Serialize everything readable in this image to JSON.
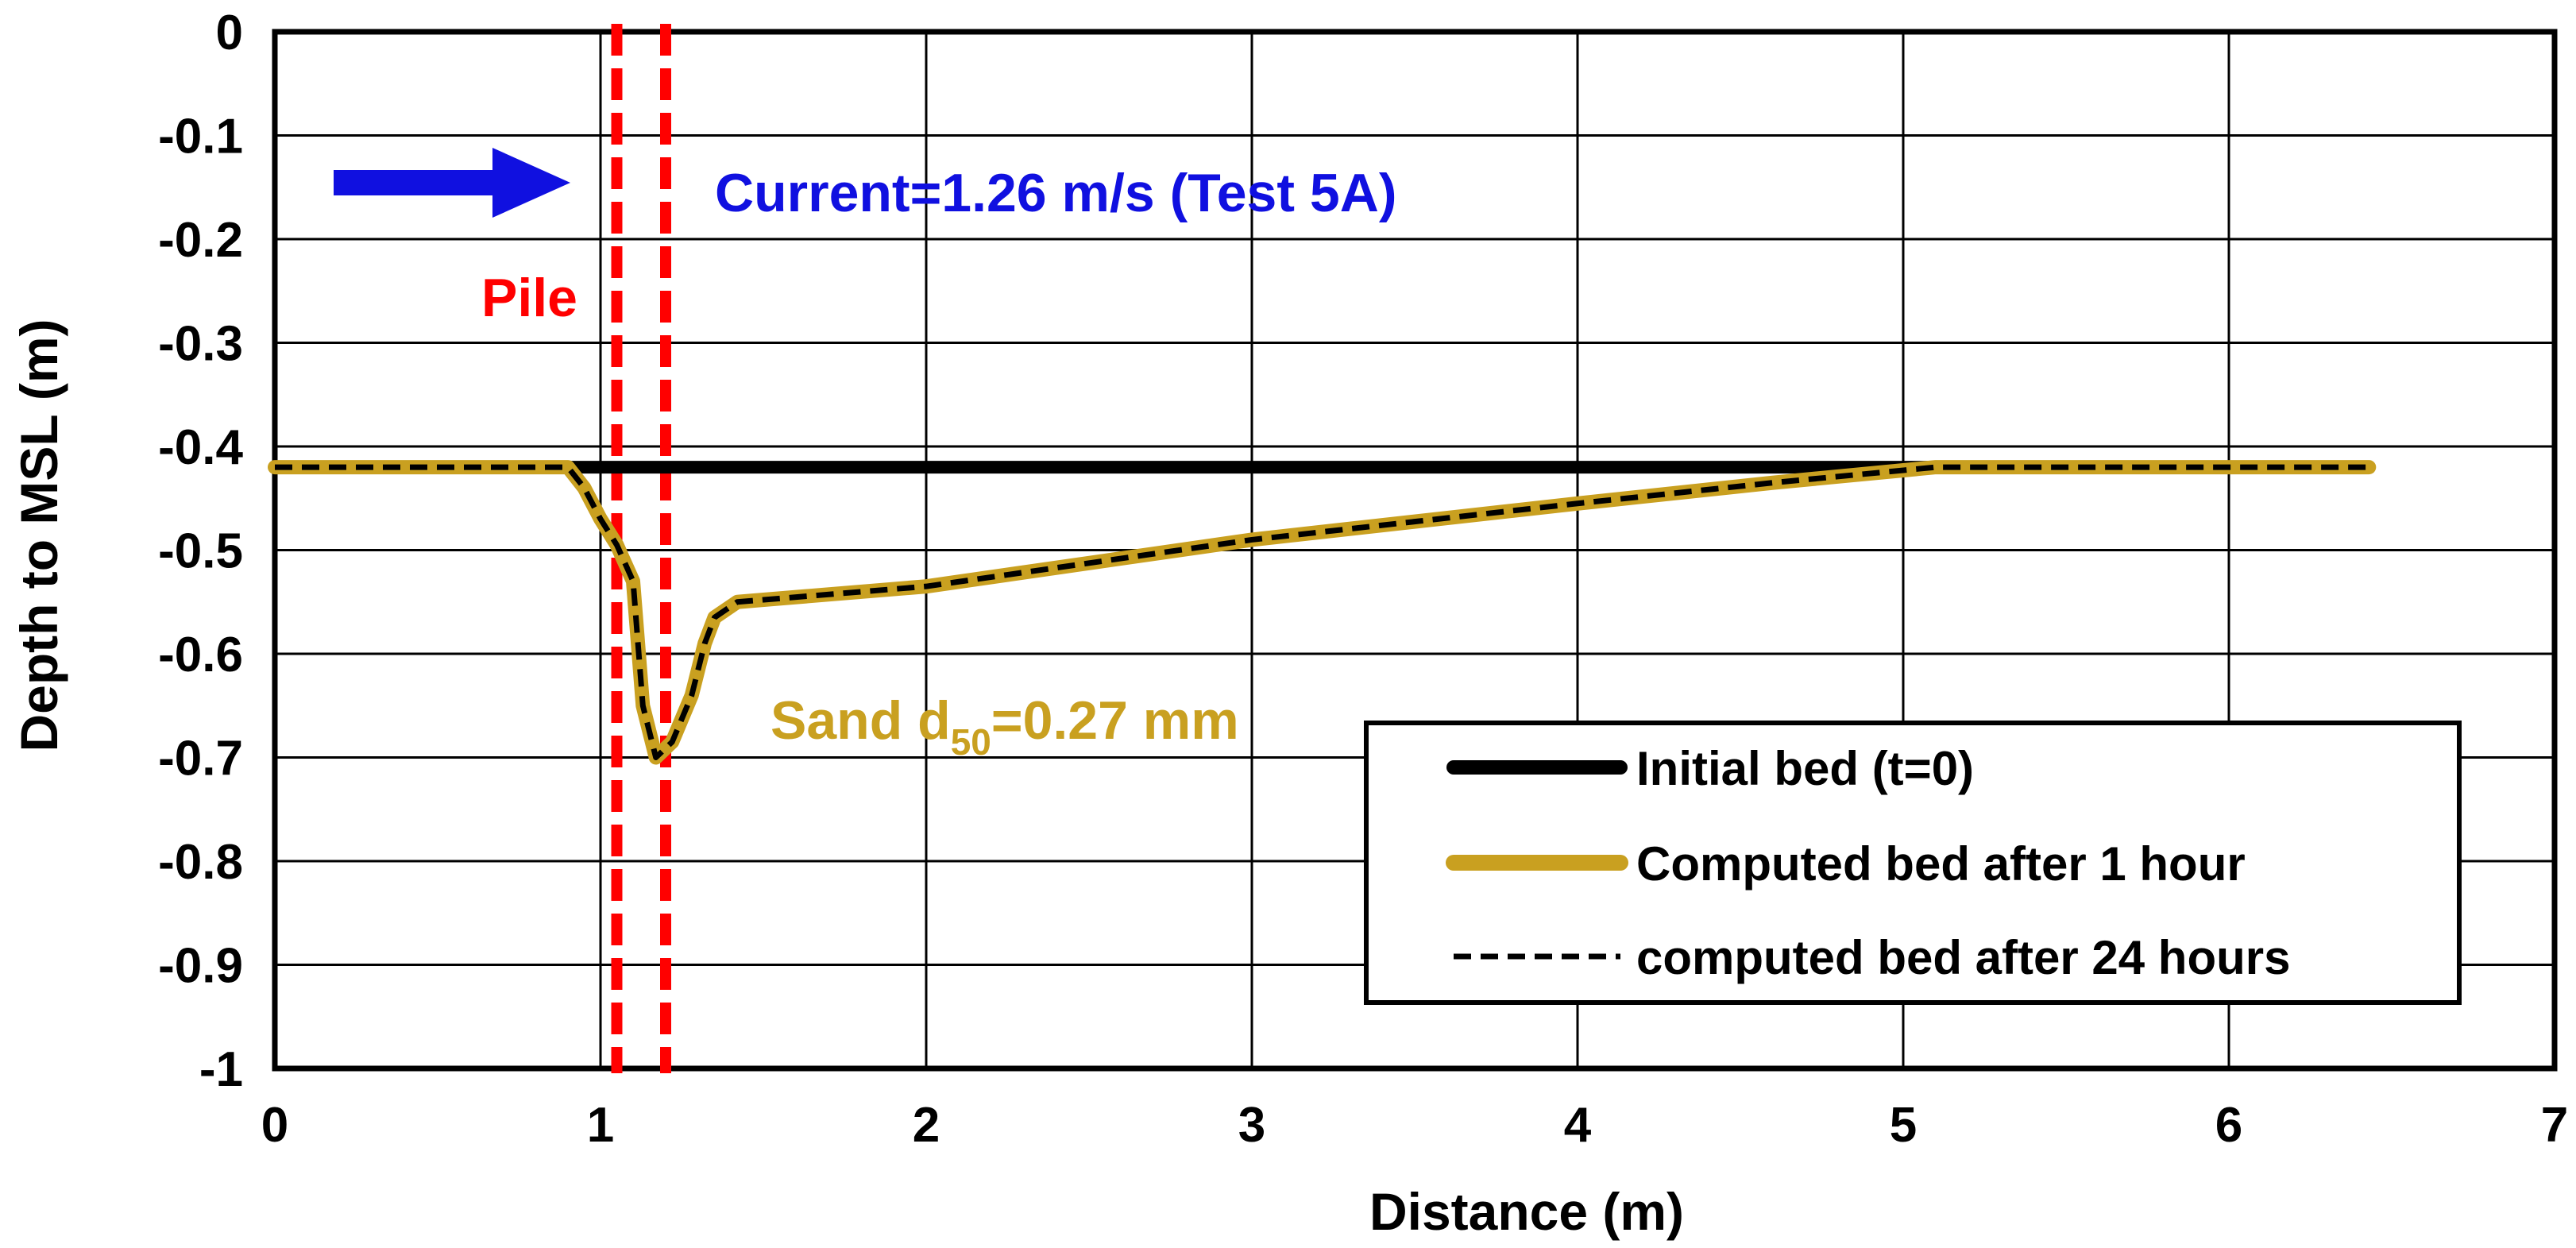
{
  "chart_data": {
    "type": "line",
    "title": "",
    "xlabel": "Distance (m)",
    "ylabel": "Depth to MSL (m)",
    "xlim": [
      0,
      7
    ],
    "ylim": [
      -1,
      0
    ],
    "xticks": [
      0,
      1,
      2,
      3,
      4,
      5,
      6,
      7
    ],
    "yticks": [
      0,
      -0.1,
      -0.2,
      -0.3,
      -0.4,
      -0.5,
      -0.6,
      -0.7,
      -0.8,
      -0.9,
      -1
    ],
    "xtick_labels": [
      "0",
      "1",
      "2",
      "3",
      "4",
      "5",
      "6",
      "7"
    ],
    "ytick_labels": [
      "0",
      "-0.1",
      "-0.2",
      "-0.3",
      "-0.4",
      "-0.5",
      "-0.6",
      "-0.7",
      "-0.8",
      "-0.9",
      "-1"
    ],
    "grid": true,
    "legend_position": "bottom-right",
    "series": [
      {
        "name": "Initial bed (t=0)",
        "color": "#000000",
        "style": "solid",
        "x": [
          0,
          5.1
        ],
        "y": [
          -0.42,
          -0.42
        ]
      },
      {
        "name": "Computed bed after 1 hour",
        "color": "#C9A020",
        "style": "solid",
        "x": [
          0,
          0.9,
          0.95,
          1.0,
          1.05,
          1.1,
          1.13,
          1.17,
          1.22,
          1.28,
          1.32,
          1.35,
          1.42,
          2.0,
          3.0,
          4.0,
          4.6,
          5.1,
          5.5,
          6.43
        ],
        "y": [
          -0.42,
          -0.42,
          -0.44,
          -0.47,
          -0.495,
          -0.53,
          -0.65,
          -0.7,
          -0.685,
          -0.64,
          -0.59,
          -0.565,
          -0.55,
          -0.535,
          -0.49,
          -0.455,
          -0.435,
          -0.42,
          -0.42,
          -0.42
        ]
      },
      {
        "name": "computed bed after 24 hours",
        "color": "#000000",
        "style": "dashed",
        "x": [
          0,
          0.9,
          0.95,
          1.0,
          1.05,
          1.1,
          1.13,
          1.17,
          1.22,
          1.28,
          1.32,
          1.35,
          1.42,
          2.0,
          3.0,
          4.0,
          4.6,
          5.1,
          5.5,
          6.43
        ],
        "y": [
          -0.42,
          -0.42,
          -0.44,
          -0.47,
          -0.495,
          -0.53,
          -0.65,
          -0.7,
          -0.685,
          -0.64,
          -0.59,
          -0.565,
          -0.55,
          -0.535,
          -0.49,
          -0.455,
          -0.435,
          -0.42,
          -0.42,
          -0.42
        ]
      }
    ],
    "pile": {
      "label": "Pile",
      "color": "#FF0000",
      "x": [
        1.05,
        1.2
      ]
    },
    "annotations": {
      "current": "Current=1.26 m/s (Test 5A)",
      "current_color": "#0000FF",
      "sand_prefix": "Sand d",
      "sand_sub": "50",
      "sand_suffix": "=0.27 mm",
      "sand_color": "#C9A020"
    }
  }
}
